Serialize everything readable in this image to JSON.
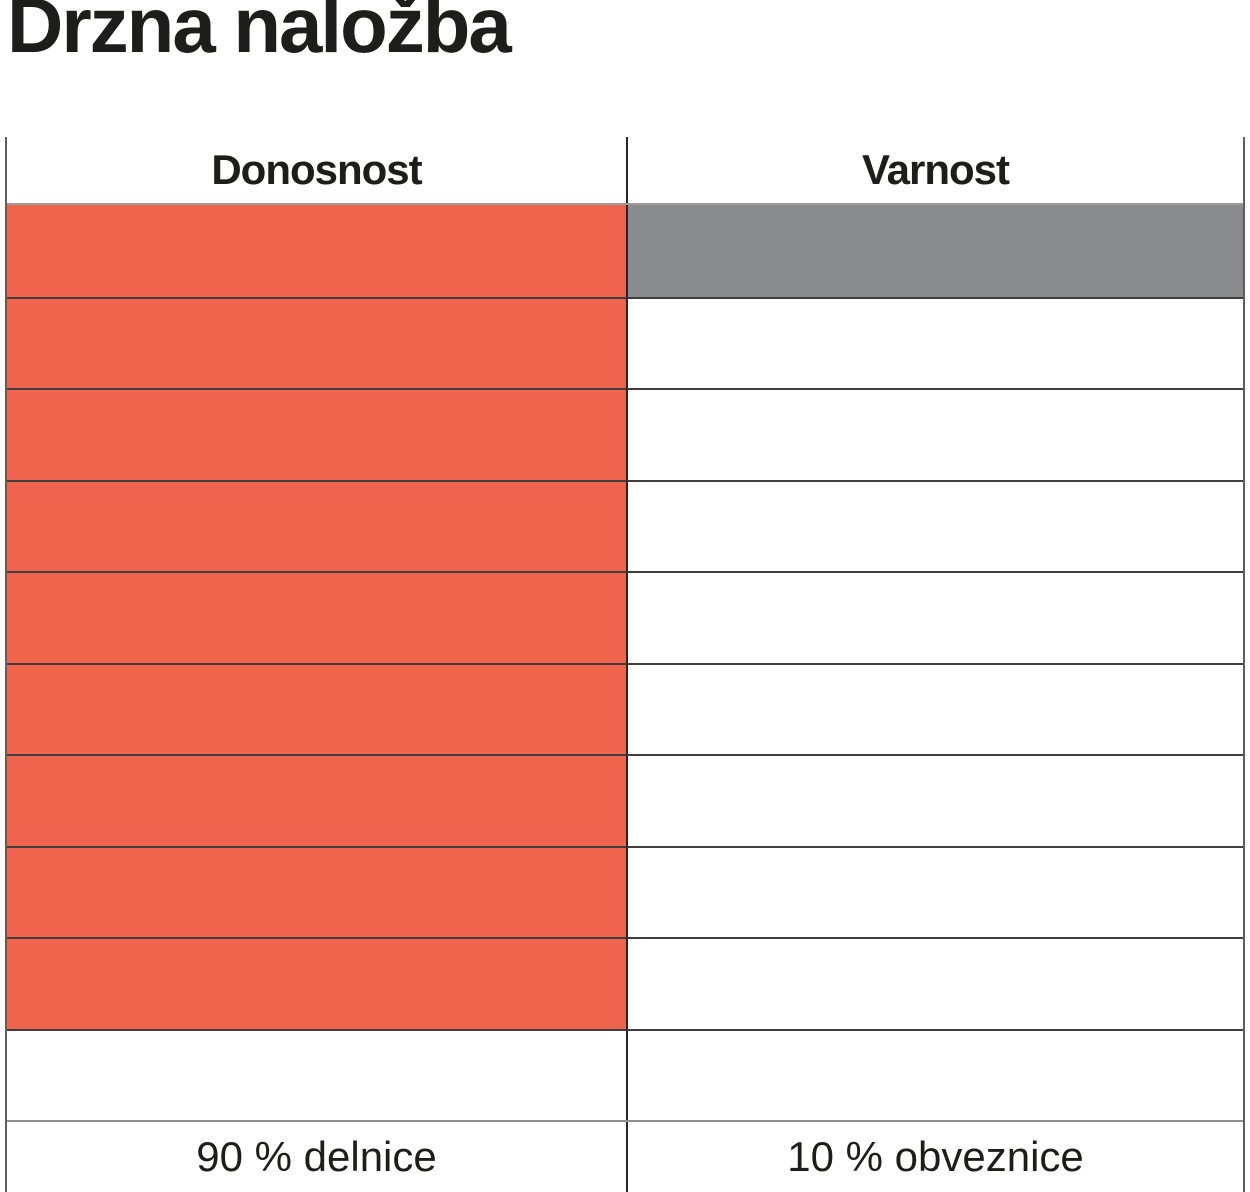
{
  "title": "Drzna naložba",
  "chart_data": {
    "type": "table",
    "title": "Drzna naložba",
    "description_model": "two-column block rating chart; each column has 10 stacked block slots, filled from top",
    "total_blocks": 10,
    "columns": [
      {
        "id": "donosnost",
        "header": "Donosnost",
        "filled_blocks": 9,
        "total_blocks": 10,
        "fill_color": "#F0634C",
        "footer_label": "90 % delnice"
      },
      {
        "id": "varnost",
        "header": "Varnost",
        "filled_blocks": 1,
        "total_blocks": 10,
        "fill_color": "#8A8B8E",
        "footer_label": "10 % obveznice"
      }
    ],
    "legend_position": "none",
    "grid": "row lines across both columns, vertical divider between columns"
  },
  "colors": {
    "accent_orange": "#F0634C",
    "accent_gray": "#8A8B8E",
    "text": "#1d1d1b",
    "row_line": "#3e3e3e",
    "section_line": "#9b9b9b"
  }
}
